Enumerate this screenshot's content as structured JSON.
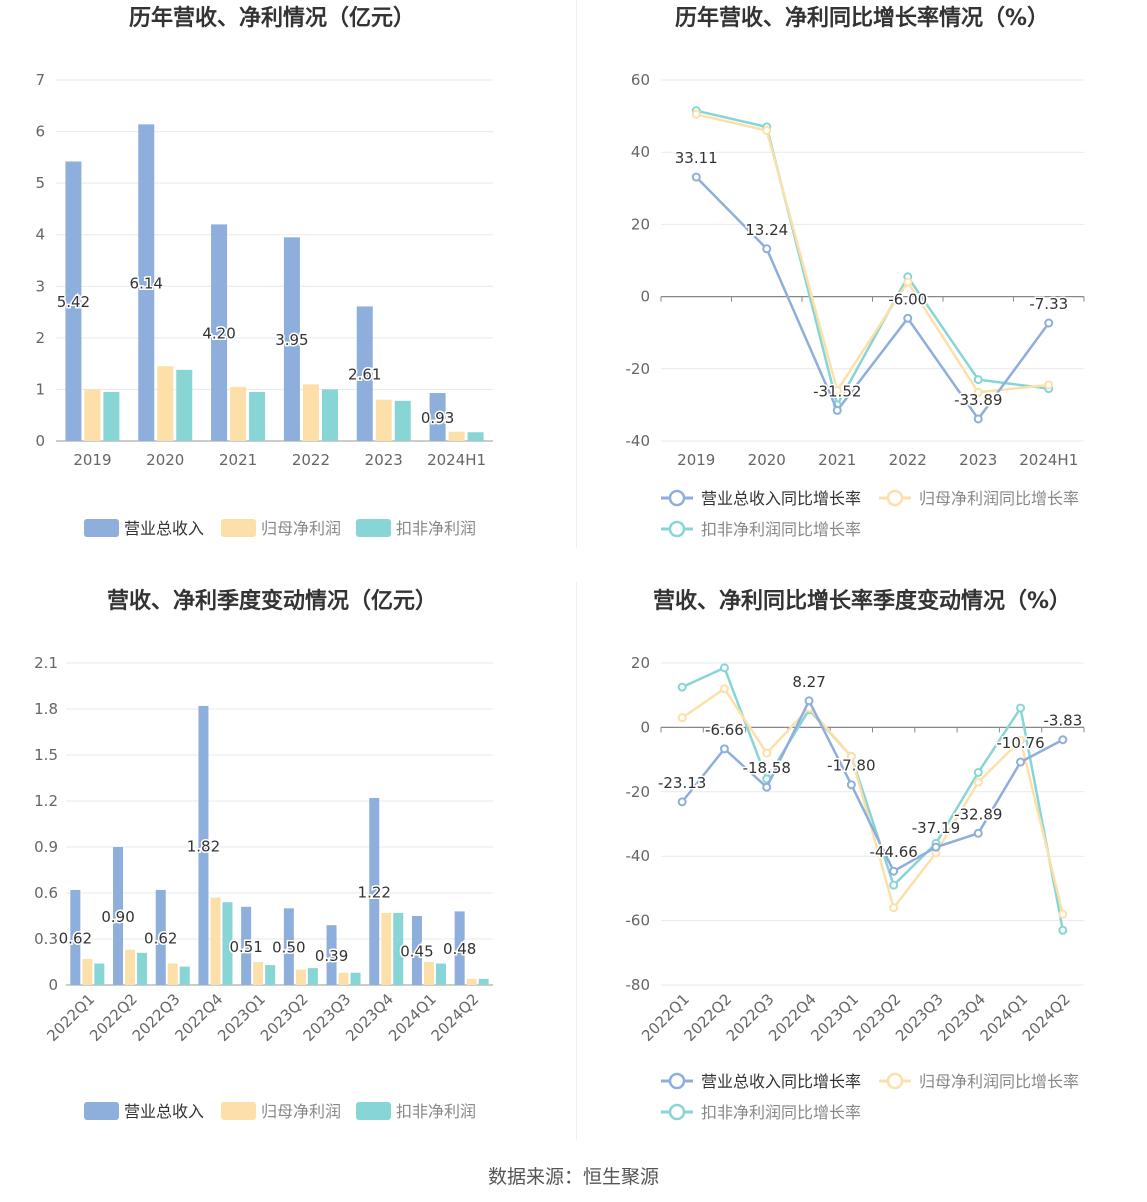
{
  "source_label": "数据来源：恒生聚源",
  "colors": {
    "revenue": "#8eaedc",
    "net_profit": "#fde0a9",
    "deducted": "#87d6d5",
    "grid": "#e6e9f0",
    "axis_text": "#666666",
    "title": "#333333"
  },
  "chart_data": [
    {
      "type": "bar",
      "title": "历年营收、净利情况（亿元）",
      "categories": [
        "2019",
        "2020",
        "2021",
        "2022",
        "2023",
        "2024H1"
      ],
      "ylim": [
        0,
        7
      ],
      "yticks": [
        "0",
        "1",
        "2",
        "3",
        "4",
        "5",
        "6",
        "7"
      ],
      "series": [
        {
          "name": "营业总收入",
          "values": [
            5.42,
            6.14,
            4.2,
            3.95,
            2.61,
            0.93
          ],
          "labels": [
            "5.42",
            "6.14",
            "4.20",
            "3.95",
            "2.61",
            "0.93"
          ]
        },
        {
          "name": "归母净利润",
          "values": [
            1.0,
            1.45,
            1.05,
            1.1,
            0.8,
            0.18
          ]
        },
        {
          "name": "扣非净利润",
          "values": [
            0.95,
            1.38,
            0.95,
            1.0,
            0.78,
            0.17
          ]
        }
      ],
      "legend": "bottom",
      "grid": true
    },
    {
      "type": "line",
      "title": "历年营收、净利同比增长率情况（%）",
      "categories": [
        "2019",
        "2020",
        "2021",
        "2022",
        "2023",
        "2024H1"
      ],
      "ylim": [
        -40,
        60
      ],
      "yticks": [
        "-40",
        "-20",
        "0",
        "20",
        "40",
        "60"
      ],
      "series": [
        {
          "name": "营业总收入同比增长率",
          "values": [
            33.11,
            13.24,
            -31.52,
            -6.0,
            -33.89,
            -7.33
          ],
          "labels": [
            "33.11",
            "13.24",
            "-31.52",
            "-6.00",
            "-33.89",
            "-7.33"
          ]
        },
        {
          "name": "归母净利润同比增长率",
          "values": [
            50.5,
            46.0,
            -26.0,
            4.0,
            -26.5,
            -24.5
          ]
        },
        {
          "name": "扣非净利润同比增长率",
          "values": [
            51.5,
            47.0,
            -30.0,
            5.5,
            -23.0,
            -25.5
          ]
        }
      ],
      "legend": "bottom",
      "grid": true
    },
    {
      "type": "bar",
      "title": "营收、净利季度变动情况（亿元）",
      "categories": [
        "2022Q1",
        "2022Q2",
        "2022Q3",
        "2022Q4",
        "2023Q1",
        "2023Q2",
        "2023Q3",
        "2023Q4",
        "2024Q1",
        "2024Q2"
      ],
      "ylim": [
        0,
        2.1
      ],
      "yticks": [
        "0",
        "0.3",
        "0.6",
        "0.9",
        "1.2",
        "1.5",
        "1.8",
        "2.1"
      ],
      "series": [
        {
          "name": "营业总收入",
          "values": [
            0.62,
            0.9,
            0.62,
            1.82,
            0.51,
            0.5,
            0.39,
            1.22,
            0.45,
            0.48
          ],
          "labels": [
            "0.62",
            "0.90",
            "0.62",
            "1.82",
            "0.51",
            "0.50",
            "0.39",
            "1.22",
            "0.45",
            "0.48"
          ]
        },
        {
          "name": "归母净利润",
          "values": [
            0.17,
            0.23,
            0.14,
            0.57,
            0.15,
            0.1,
            0.08,
            0.47,
            0.15,
            0.04
          ]
        },
        {
          "name": "扣非净利润",
          "values": [
            0.14,
            0.21,
            0.12,
            0.54,
            0.13,
            0.11,
            0.08,
            0.47,
            0.14,
            0.04
          ]
        }
      ],
      "legend": "bottom",
      "grid": true
    },
    {
      "type": "line",
      "title": "营收、净利同比增长率季度变动情况（%）",
      "categories": [
        "2022Q1",
        "2022Q2",
        "2022Q3",
        "2022Q4",
        "2023Q1",
        "2023Q2",
        "2023Q3",
        "2023Q4",
        "2024Q1",
        "2024Q2"
      ],
      "ylim": [
        -80,
        20
      ],
      "yticks": [
        "-80",
        "-60",
        "-40",
        "-20",
        "0",
        "20"
      ],
      "series": [
        {
          "name": "营业总收入同比增长率",
          "values": [
            -23.13,
            -6.66,
            -18.58,
            8.27,
            -17.8,
            -44.66,
            -37.19,
            -32.89,
            -10.76,
            -3.83
          ],
          "labels": [
            "-23.13",
            "-6.66",
            "-18.58",
            "8.27",
            "-17.80",
            "-44.66",
            "-37.19",
            "-32.89",
            "-10.76",
            "-3.83"
          ]
        },
        {
          "name": "归母净利润同比增长率",
          "values": [
            3.0,
            12.0,
            -8.0,
            6.0,
            -9.0,
            -56.0,
            -39.0,
            -17.0,
            -4.0,
            -58.0
          ]
        },
        {
          "name": "扣非净利润同比增长率",
          "values": [
            12.5,
            18.5,
            -16.0,
            5.5,
            -9.0,
            -49.0,
            -36.0,
            -14.0,
            6.0,
            -63.0
          ]
        }
      ],
      "legend": "bottom",
      "grid": true
    }
  ]
}
